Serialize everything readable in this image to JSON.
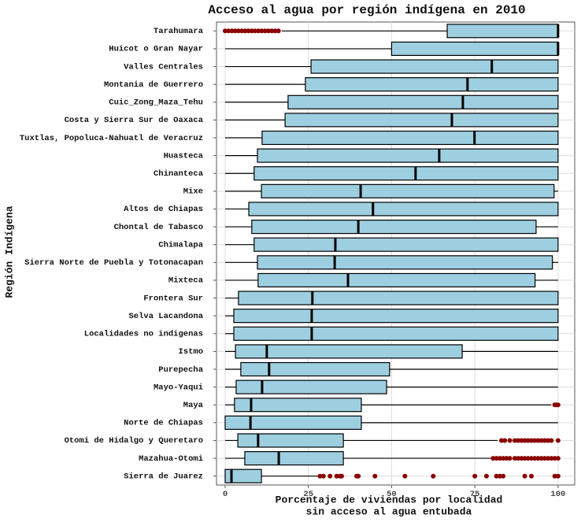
{
  "chart_data": {
    "type": "boxplot",
    "title": "Acceso al agua por región indígena en 2010",
    "x_label": [
      "Porcentaje de viviendas por localidad",
      "sin acceso al agua entubada"
    ],
    "y_label": "Región Indígena",
    "xlim": [
      -2.6,
      105
    ],
    "xticks": [
      0,
      25,
      50,
      75,
      100
    ],
    "grid": true,
    "box_color": "#9ecfe0",
    "outlier_color": "#8b0000",
    "categories": [
      "Tarahumara",
      "Huicot o Gran Nayar",
      "Valles Centrales",
      "Montania de Guerrero",
      "Cuic_Zong_Maza_Tehu",
      "Costa y Sierra Sur de Oaxaca",
      "Tuxtlas, Popoluca-Nahuatl de Veracruz",
      "Huasteca",
      "Chinanteca",
      "Mixe",
      "Altos de Chiapas",
      "Chontal de Tabasco",
      "Chimalapa",
      "Sierra Norte de Puebla y Totonacapan",
      "Mixteca",
      "Frontera Sur",
      "Selva Lacandona",
      "Localidades no indigenas",
      "Istmo",
      "Purepecha",
      "Mayo-Yaqui",
      "Maya",
      "Norte de Chiapas",
      "Otomi de Hidalgo y Queretaro",
      "Mazahua-Otomi",
      "Sierra de Juarez"
    ],
    "boxes": [
      {
        "min": 17,
        "q1": 66.7,
        "median": 100,
        "q3": 100,
        "max": 100,
        "outliers": [
          0,
          1,
          2,
          3,
          4,
          5,
          6,
          7,
          8,
          9,
          10,
          11,
          12,
          13,
          14,
          15,
          16
        ]
      },
      {
        "min": 0,
        "q1": 50,
        "median": 100,
        "q3": 100,
        "max": 100,
        "outliers": []
      },
      {
        "min": 0,
        "q1": 25.8,
        "median": 80.1,
        "q3": 100,
        "max": 100,
        "outliers": []
      },
      {
        "min": 0,
        "q1": 24.1,
        "median": 72.8,
        "q3": 100,
        "max": 100,
        "outliers": []
      },
      {
        "min": 0,
        "q1": 18.9,
        "median": 71.4,
        "q3": 100,
        "max": 100,
        "outliers": []
      },
      {
        "min": 0,
        "q1": 18,
        "median": 68.1,
        "q3": 100,
        "max": 100,
        "outliers": []
      },
      {
        "min": 0,
        "q1": 11.1,
        "median": 74.9,
        "q3": 100,
        "max": 100,
        "outliers": []
      },
      {
        "min": 0,
        "q1": 9.7,
        "median": 64.3,
        "q3": 100,
        "max": 100,
        "outliers": []
      },
      {
        "min": 0,
        "q1": 8.7,
        "median": 57.2,
        "q3": 100,
        "max": 100,
        "outliers": []
      },
      {
        "min": 0,
        "q1": 10.9,
        "median": 40.7,
        "q3": 98.8,
        "max": 100,
        "outliers": []
      },
      {
        "min": 0,
        "q1": 7.1,
        "median": 44.4,
        "q3": 100,
        "max": 100,
        "outliers": []
      },
      {
        "min": 0,
        "q1": 8,
        "median": 40,
        "q3": 93.4,
        "max": 100,
        "outliers": []
      },
      {
        "min": 0,
        "q1": 8.7,
        "median": 33.1,
        "q3": 100,
        "max": 100,
        "outliers": []
      },
      {
        "min": 0,
        "q1": 9.7,
        "median": 32.9,
        "q3": 98.3,
        "max": 100,
        "outliers": []
      },
      {
        "min": 0,
        "q1": 9.9,
        "median": 36.9,
        "q3": 93.1,
        "max": 100,
        "outliers": []
      },
      {
        "min": 0,
        "q1": 4,
        "median": 26.2,
        "q3": 100,
        "max": 100,
        "outliers": []
      },
      {
        "min": 0,
        "q1": 2.6,
        "median": 26,
        "q3": 100,
        "max": 100,
        "outliers": []
      },
      {
        "min": 0,
        "q1": 2.6,
        "median": 26,
        "q3": 100,
        "max": 100,
        "outliers": []
      },
      {
        "min": 0,
        "q1": 3.1,
        "median": 12.5,
        "q3": 71.2,
        "max": 100,
        "outliers": []
      },
      {
        "min": 0,
        "q1": 4.7,
        "median": 13.2,
        "q3": 49.4,
        "max": 100,
        "outliers": []
      },
      {
        "min": 0,
        "q1": 3.3,
        "median": 11.1,
        "q3": 48.5,
        "max": 100,
        "outliers": []
      },
      {
        "min": 0,
        "q1": 2.8,
        "median": 7.8,
        "q3": 40.9,
        "max": 98,
        "outliers": [
          99,
          99.5,
          100
        ]
      },
      {
        "min": 0,
        "q1": 0,
        "median": 7.6,
        "q3": 40.9,
        "max": 100,
        "outliers": []
      },
      {
        "min": 0,
        "q1": 3.8,
        "median": 9.9,
        "q3": 35.5,
        "max": 81.8,
        "outliers": [
          83,
          84,
          85.5,
          87,
          88,
          89,
          90,
          91,
          92,
          93,
          94,
          95,
          96,
          97,
          98,
          100
        ]
      },
      {
        "min": 0,
        "q1": 5.9,
        "median": 16.1,
        "q3": 35.5,
        "max": 80.1,
        "outliers": [
          80.5,
          81.5,
          82.5,
          83.5,
          84.5,
          85.5,
          87,
          88,
          89,
          90,
          91,
          92,
          93,
          94,
          95,
          96,
          97,
          98,
          99,
          100
        ]
      },
      {
        "min": 0,
        "q1": 0,
        "median": 1.9,
        "q3": 10.9,
        "max": 28.1,
        "outliers": [
          28.5,
          29.5,
          31.5,
          33.5,
          34.5,
          35,
          39.5,
          40,
          45,
          54,
          62.5,
          75,
          78.5,
          81.5,
          82.5,
          83.5,
          90,
          92,
          99,
          100
        ]
      }
    ]
  }
}
